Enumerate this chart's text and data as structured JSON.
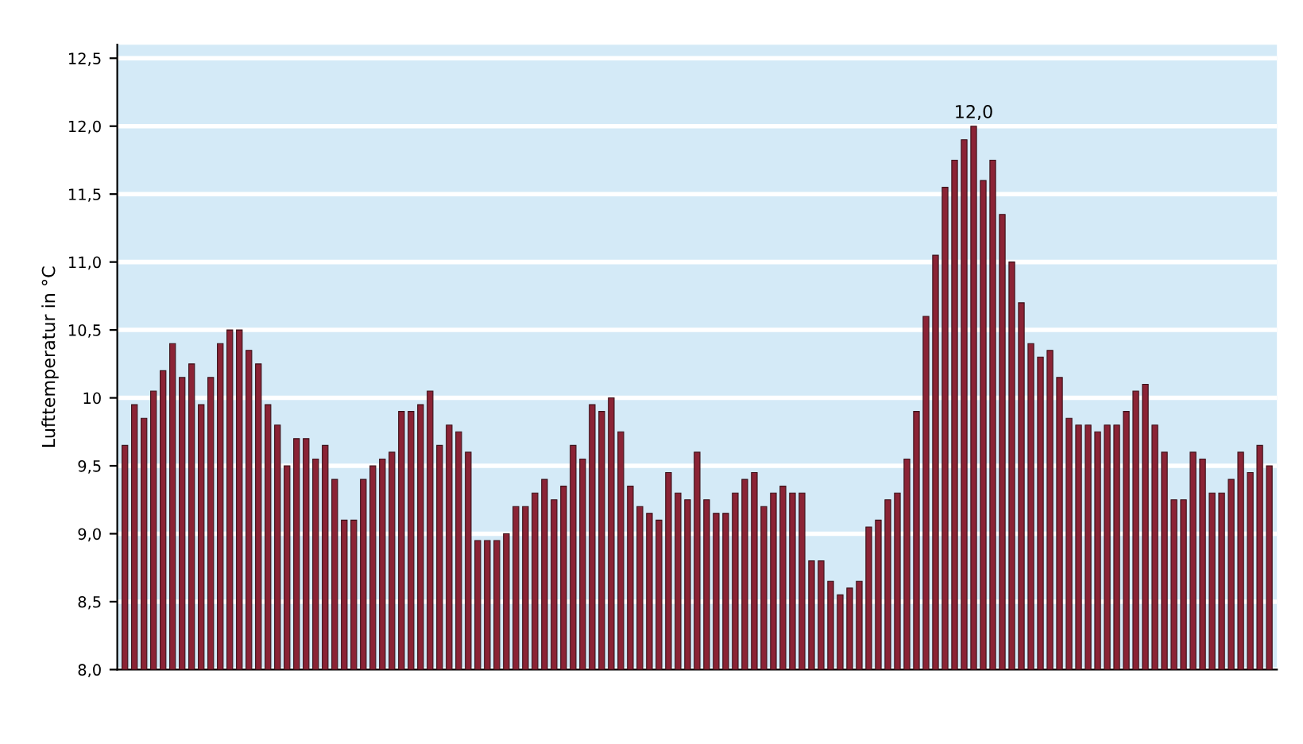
{
  "chart_data": {
    "type": "bar",
    "ylabel": "Lufttemperatur in °C",
    "categories": [
      null,
      null,
      null,
      null,
      null,
      null,
      null,
      null,
      null,
      null,
      null,
      null,
      null,
      null,
      null,
      null,
      null,
      null,
      null,
      null,
      null,
      null,
      null,
      null,
      null,
      null,
      null,
      null,
      null,
      null,
      null,
      null,
      null,
      null,
      null,
      null,
      null,
      null,
      null,
      null,
      null,
      null,
      null,
      null,
      null,
      null,
      null,
      null,
      null,
      null,
      null,
      null,
      null,
      null,
      null,
      null,
      null,
      null,
      null,
      null,
      null,
      null,
      null,
      null,
      null,
      null,
      null,
      null,
      null,
      null,
      null,
      null,
      null,
      null,
      null,
      null,
      null,
      null,
      null,
      null,
      null,
      null,
      null,
      null,
      null,
      null,
      null,
      null,
      null,
      null,
      null,
      null,
      null,
      null,
      null,
      null,
      null,
      null,
      null,
      null,
      null,
      null,
      null,
      null,
      null,
      null,
      null,
      null,
      null,
      null,
      null,
      null,
      null,
      null,
      null,
      null,
      null,
      null,
      null,
      null,
      null
    ],
    "values": [
      9.65,
      9.95,
      9.85,
      10.05,
      10.2,
      10.4,
      10.15,
      10.25,
      9.95,
      10.15,
      10.4,
      10.5,
      10.5,
      10.35,
      10.25,
      9.95,
      9.8,
      9.5,
      9.7,
      9.7,
      9.55,
      9.65,
      9.4,
      9.1,
      9.1,
      9.4,
      9.5,
      9.55,
      9.6,
      9.9,
      9.9,
      9.95,
      10.05,
      9.65,
      9.8,
      9.75,
      9.6,
      8.95,
      8.95,
      8.95,
      9.0,
      9.2,
      9.2,
      9.3,
      9.4,
      9.25,
      9.35,
      9.65,
      9.55,
      9.95,
      9.9,
      10.0,
      9.75,
      9.35,
      9.2,
      9.15,
      9.1,
      9.45,
      9.3,
      9.25,
      9.6,
      9.25,
      9.15,
      9.15,
      9.3,
      9.4,
      9.45,
      9.2,
      9.3,
      9.35,
      9.3,
      9.3,
      8.8,
      8.8,
      8.65,
      8.55,
      8.6,
      8.65,
      9.05,
      9.1,
      9.25,
      9.3,
      9.55,
      9.9,
      10.6,
      11.05,
      11.55,
      11.75,
      11.9,
      12.0,
      11.6,
      11.75,
      11.35,
      11.0,
      10.7,
      10.4,
      10.3,
      10.35,
      10.15,
      9.85,
      9.8,
      9.8,
      9.75,
      9.8,
      9.8,
      9.9,
      10.05,
      10.1,
      9.8,
      9.6,
      9.25,
      9.25,
      9.6,
      9.55,
      9.3,
      9.3,
      9.4,
      9.6,
      9.45,
      9.65,
      9.5
    ],
    "value_labels": [
      null,
      null,
      null,
      null,
      null,
      null,
      null,
      null,
      null,
      null,
      null,
      null,
      null,
      null,
      null,
      null,
      null,
      null,
      null,
      null,
      null,
      null,
      null,
      null,
      null,
      null,
      null,
      null,
      null,
      null,
      null,
      null,
      null,
      null,
      null,
      null,
      null,
      null,
      null,
      null,
      null,
      null,
      null,
      null,
      null,
      null,
      null,
      null,
      null,
      null,
      null,
      null,
      null,
      null,
      null,
      null,
      null,
      null,
      null,
      null,
      null,
      null,
      null,
      null,
      null,
      null,
      null,
      null,
      null,
      null,
      null,
      null,
      null,
      null,
      null,
      null,
      null,
      null,
      null,
      null,
      null,
      null,
      null,
      null,
      null,
      null,
      null,
      null,
      null,
      "12,0",
      null,
      null,
      null,
      null,
      null,
      null,
      null,
      null,
      null,
      null,
      null,
      null,
      null,
      null,
      null,
      null,
      null,
      null,
      null,
      null,
      null,
      null,
      null,
      null,
      null,
      null,
      null,
      null,
      null,
      null,
      null
    ],
    "color": "#8b2335",
    "ylim": [
      8.0,
      12.6
    ],
    "yticks": [
      {
        "value": 8.0,
        "label": "8,0"
      },
      {
        "value": 8.5,
        "label": "8,5"
      },
      {
        "value": 9.0,
        "label": "9,0"
      },
      {
        "value": 9.5,
        "label": "9,5"
      },
      {
        "value": 10,
        "label": "10"
      },
      {
        "value": 10.5,
        "label": "10,5"
      },
      {
        "value": 11.0,
        "label": "11,0"
      },
      {
        "value": 11.5,
        "label": "11,5"
      },
      {
        "value": 12.0,
        "label": "12,0"
      },
      {
        "value": 12.5,
        "label": "12,5"
      }
    ],
    "grid": "y"
  }
}
